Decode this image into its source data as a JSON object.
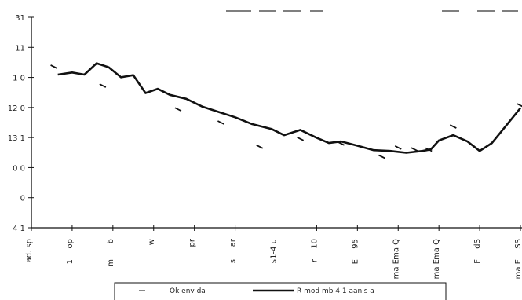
{
  "chart_data": {
    "type": "line",
    "title": "",
    "xlabel": "",
    "ylabel": "",
    "y_ticks": [
      "31",
      "11",
      "1 0",
      "12 0",
      "13 1",
      "0 0",
      "0",
      "4 1"
    ],
    "x_ticks": [
      {
        "top": "ad. sp",
        "bottom": ""
      },
      {
        "top": "op",
        "bottom": "1"
      },
      {
        "top": "b",
        "bottom": "m"
      },
      {
        "top": "w",
        "bottom": ""
      },
      {
        "top": "pr",
        "bottom": ""
      },
      {
        "top": "ar",
        "bottom": "s"
      },
      {
        "top": "1-4 u",
        "bottom": "s"
      },
      {
        "top": "10",
        "bottom": "r"
      },
      {
        "top": "95",
        "bottom": "E"
      },
      {
        "top": "ma Q",
        "bottom": "ma E"
      },
      {
        "top": "ma Q",
        "bottom": "ma E"
      },
      {
        "top": "dS",
        "bottom": "F"
      },
      {
        "top": "SS",
        "bottom": "ma E"
      }
    ],
    "ylim": [
      0,
      8
    ],
    "xlim": [
      0,
      12
    ],
    "grid": false,
    "legend_position": "bottom",
    "series": [
      {
        "name": "Ok env da",
        "style": "markers",
        "points": [
          [
            0.55,
            6.12
          ],
          [
            1.75,
            5.4
          ],
          [
            3.6,
            4.5
          ],
          [
            4.65,
            4.0
          ],
          [
            5.6,
            3.08
          ],
          [
            6.6,
            3.38
          ],
          [
            7.6,
            3.2
          ],
          [
            8.6,
            2.7
          ],
          [
            9.0,
            3.05
          ],
          [
            9.4,
            2.98
          ],
          [
            9.75,
            2.97
          ],
          [
            10.35,
            3.85
          ],
          [
            12.0,
            4.65
          ]
        ]
      },
      {
        "name": "R mod mb 4 1 aanis a",
        "style": "line",
        "points": [
          [
            0.65,
            5.82
          ],
          [
            1.0,
            5.9
          ],
          [
            1.3,
            5.82
          ],
          [
            1.6,
            6.25
          ],
          [
            1.9,
            6.1
          ],
          [
            2.2,
            5.72
          ],
          [
            2.5,
            5.8
          ],
          [
            2.8,
            5.12
          ],
          [
            3.1,
            5.28
          ],
          [
            3.4,
            5.05
          ],
          [
            3.8,
            4.9
          ],
          [
            4.2,
            4.6
          ],
          [
            4.6,
            4.4
          ],
          [
            5.0,
            4.2
          ],
          [
            5.4,
            3.95
          ],
          [
            5.9,
            3.75
          ],
          [
            6.2,
            3.52
          ],
          [
            6.6,
            3.72
          ],
          [
            7.0,
            3.42
          ],
          [
            7.3,
            3.22
          ],
          [
            7.6,
            3.28
          ],
          [
            8.0,
            3.12
          ],
          [
            8.4,
            2.95
          ],
          [
            8.8,
            2.92
          ],
          [
            9.2,
            2.85
          ],
          [
            9.6,
            2.92
          ],
          [
            9.8,
            2.98
          ],
          [
            10.0,
            3.32
          ],
          [
            10.35,
            3.52
          ],
          [
            10.7,
            3.28
          ],
          [
            11.0,
            2.92
          ],
          [
            11.3,
            3.22
          ],
          [
            11.7,
            3.98
          ],
          [
            12.0,
            4.55
          ]
        ]
      }
    ]
  },
  "header_dashes": [
    "— —",
    "—— —— ——",
    "— —"
  ],
  "legend": {
    "marker_label": "Ok env da",
    "line_label": "R mod mb 4 1 aanis a"
  }
}
